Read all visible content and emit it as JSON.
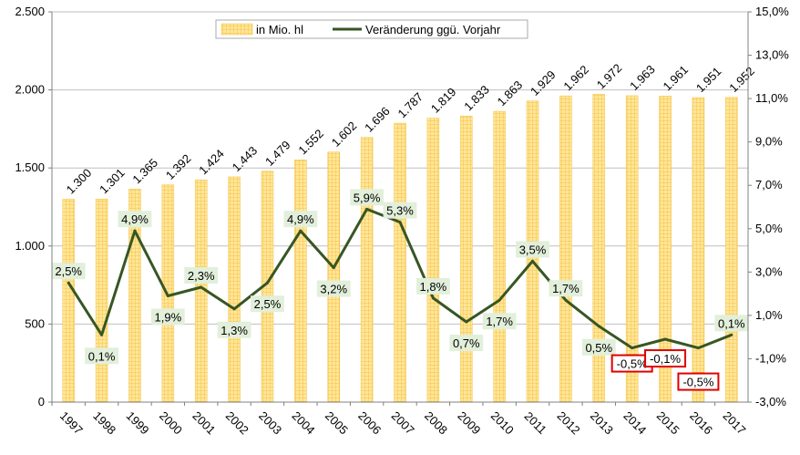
{
  "chart_data": {
    "type": "bar",
    "categories": [
      "1997",
      "1998",
      "1999",
      "2000",
      "2001",
      "2002",
      "2003",
      "2004",
      "2005",
      "2006",
      "2007",
      "2008",
      "2009",
      "2010",
      "2011",
      "2012",
      "2013",
      "2014",
      "2015",
      "2016",
      "2017"
    ],
    "series": [
      {
        "name": "in Mio. hl",
        "type": "bar",
        "axis": "left",
        "color": "#FFD966",
        "values": [
          1300,
          1301,
          1365,
          1392,
          1424,
          1443,
          1479,
          1552,
          1602,
          1696,
          1787,
          1819,
          1833,
          1863,
          1929,
          1962,
          1972,
          1963,
          1961,
          1951,
          1952
        ],
        "labels": [
          "1.300",
          "1.301",
          "1.365",
          "1.392",
          "1.424",
          "1.443",
          "1.479",
          "1.552",
          "1.602",
          "1.696",
          "1.787",
          "1.819",
          "1.833",
          "1.863",
          "1.929",
          "1.962",
          "1.972",
          "1.963",
          "1.961",
          "1.951",
          "1.952"
        ]
      },
      {
        "name": "Veränderung ggü. Vorjahr",
        "type": "line",
        "axis": "right",
        "color": "#375623",
        "values": [
          2.5,
          0.1,
          4.9,
          1.9,
          2.3,
          1.3,
          2.5,
          4.9,
          3.2,
          5.9,
          5.3,
          1.8,
          0.7,
          1.7,
          3.5,
          1.7,
          0.5,
          -0.5,
          -0.1,
          -0.5,
          0.1
        ],
        "labels": [
          "2,5%",
          "0,1%",
          "4,9%",
          "1,9%",
          "2,3%",
          "1,3%",
          "2,5%",
          "4,9%",
          "3,2%",
          "5,9%",
          "5,3%",
          "1,8%",
          "0,7%",
          "1,7%",
          "3,5%",
          "1,7%",
          "0,5%",
          "-0,5%",
          "-0,1%",
          "-0,5%",
          "0,1%"
        ]
      }
    ],
    "highlighted_negative_labels": [
      17,
      18,
      19
    ],
    "y_left": {
      "min": 0,
      "max": 2500,
      "ticks": [
        0,
        500,
        1000,
        1500,
        2000,
        2500
      ],
      "tick_labels": [
        "0",
        "500",
        "1.000",
        "1.500",
        "2.000",
        "2.500"
      ]
    },
    "y_right": {
      "min": -3,
      "max": 15,
      "ticks": [
        -3,
        -1,
        1,
        3,
        5,
        7,
        9,
        11,
        13,
        15
      ],
      "tick_labels": [
        "-3,0%",
        "-1,0%",
        "1,0%",
        "3,0%",
        "5,0%",
        "7,0%",
        "9,0%",
        "11,0%",
        "13,0%",
        "15,0%"
      ]
    },
    "grid": true,
    "legend_position": "top-center",
    "title": "",
    "xlabel": "",
    "ylabel": ""
  }
}
